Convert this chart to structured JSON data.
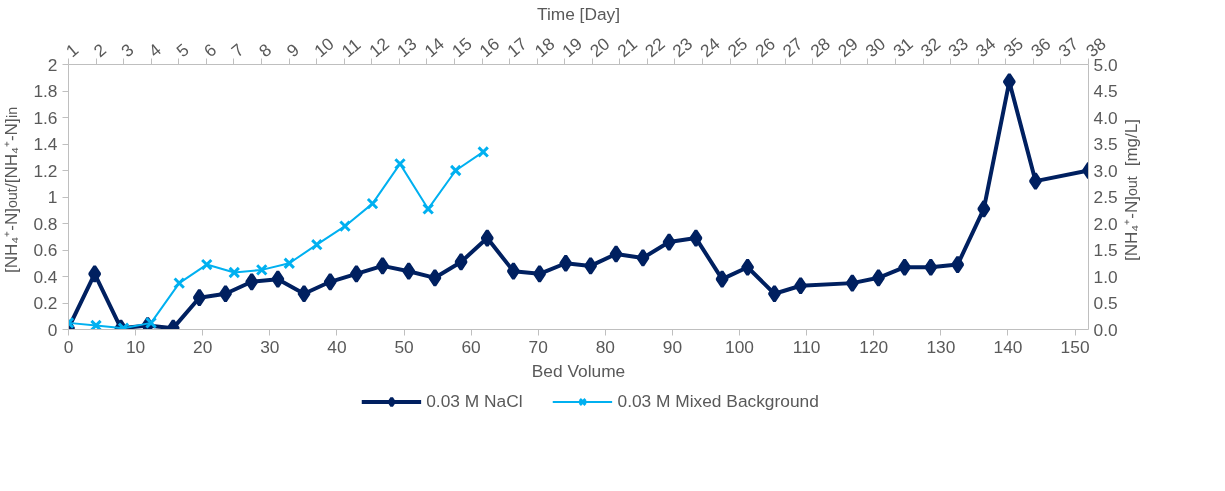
{
  "chart_data": {
    "type": "line",
    "xlabel": "Bed Volume",
    "x2label": "Time [Day]",
    "ylabel": "[NH₄⁺-N]$_{out}$/[NH₄⁺-N]$_{in}$",
    "y2label": "[NH₄⁺-N]$_{out}$ [mg/L]",
    "xlim": [
      0,
      152
    ],
    "xticks": [
      0,
      10,
      20,
      30,
      40,
      50,
      60,
      70,
      80,
      90,
      100,
      110,
      120,
      130,
      140,
      150
    ],
    "x2lim": [
      1,
      38
    ],
    "x2ticks": [
      1,
      2,
      3,
      4,
      5,
      6,
      7,
      8,
      9,
      10,
      11,
      12,
      13,
      14,
      15,
      16,
      17,
      18,
      19,
      20,
      21,
      22,
      23,
      24,
      25,
      26,
      27,
      28,
      29,
      30,
      31,
      32,
      33,
      34,
      35,
      36,
      37,
      38
    ],
    "ylim": [
      0,
      2
    ],
    "yticks": [
      0,
      0.2,
      0.4,
      0.6,
      0.8,
      1,
      1.2,
      1.4,
      1.6,
      1.8,
      2
    ],
    "y2lim": [
      0,
      5
    ],
    "y2ticks": [
      {
        "value": 0,
        "label": "0.0"
      },
      {
        "value": 0.5,
        "label": "0.5"
      },
      {
        "value": 1,
        "label": "1.0"
      },
      {
        "value": 1.5,
        "label": "1.5"
      },
      {
        "value": 2,
        "label": "2.0"
      },
      {
        "value": 2.5,
        "label": "2.5"
      },
      {
        "value": 3,
        "label": "3.0"
      },
      {
        "value": 3.5,
        "label": "3.5"
      },
      {
        "value": 4,
        "label": "4.0"
      },
      {
        "value": 4.5,
        "label": "4.5"
      },
      {
        "value": 5,
        "label": "5.0"
      }
    ],
    "grid": false,
    "legend": "bottom",
    "series": [
      {
        "name": "0.03 M NaCl",
        "color": "#002060",
        "marker": "diamond",
        "x": [
          0,
          3.9,
          7.8,
          11.8,
          15.6,
          19.5,
          23.4,
          27.3,
          31.2,
          35.1,
          39.0,
          42.9,
          46.8,
          50.7,
          54.6,
          58.5,
          62.4,
          66.3,
          70.2,
          74.1,
          77.8,
          81.6,
          85.6,
          89.5,
          93.5,
          97.4,
          101.2,
          105.2,
          109.1,
          116.8,
          120.7,
          124.6,
          128.5,
          132.5,
          136.4,
          140.2,
          144.1,
          152
        ],
        "values": [
          0.01,
          0.42,
          0.01,
          0.03,
          0.01,
          0.24,
          0.27,
          0.36,
          0.38,
          0.27,
          0.36,
          0.42,
          0.48,
          0.44,
          0.39,
          0.51,
          0.69,
          0.44,
          0.42,
          0.5,
          0.48,
          0.57,
          0.54,
          0.66,
          0.69,
          0.38,
          0.47,
          0.27,
          0.33,
          0.35,
          0.39,
          0.47,
          0.47,
          0.49,
          0.91,
          1.87,
          1.12,
          1.2
        ]
      },
      {
        "name": "0.03 M Mixed Background",
        "color": "#00b0f0",
        "marker": "cross",
        "x": [
          0,
          4.1,
          8.2,
          12.3,
          16.5,
          20.6,
          24.7,
          28.8,
          32.9,
          37.0,
          41.2,
          45.3,
          49.4,
          53.6,
          57.7,
          61.8
        ],
        "values": [
          0.05,
          0.03,
          0.01,
          0.05,
          0.35,
          0.49,
          0.43,
          0.45,
          0.5,
          0.64,
          0.78,
          0.95,
          1.25,
          0.91,
          1.2,
          1.34
        ]
      }
    ]
  }
}
